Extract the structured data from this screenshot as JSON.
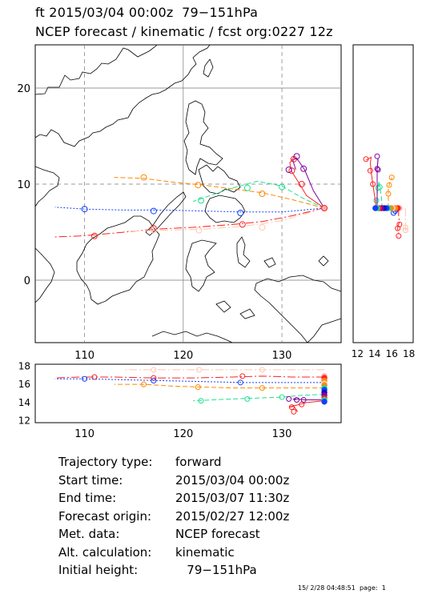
{
  "header": {
    "line1": "ft 2015/03/04 00:00z  79−151hPa",
    "line2": "NCEP forecast / kinematic / fcst org:0227 12z"
  },
  "colors": {
    "red": "#ff2020",
    "orange": "#ff8800",
    "blue": "#1040ff",
    "green": "#20e090",
    "purple": "#8000a0",
    "navy": "#1010c0",
    "pink": "#ffb0b0",
    "peach": "#ffc8b0",
    "coast": "#000000"
  },
  "map": {
    "lon_ticks": [
      "110",
      "120",
      "130"
    ],
    "lat_ticks": [
      "20",
      "10",
      "0"
    ]
  },
  "side_panel": {
    "x_ticks": [
      "12",
      "14",
      "16",
      "18"
    ]
  },
  "bottom_panel": {
    "y_ticks": [
      "18",
      "16",
      "14",
      "12"
    ],
    "x_ticks": [
      "110",
      "120",
      "130"
    ]
  },
  "chart_data": {
    "type": "line",
    "title": "ft 2015/03/04 00:00z  79−151hPa",
    "subtitle": "NCEP forecast / kinematic / fcst org:0227 12z",
    "map_xlim": [
      105,
      136
    ],
    "map_ylim": [
      -6.5,
      24.5
    ],
    "side_xlim": [
      11.5,
      18.5
    ],
    "bottom_ylim": [
      11.8,
      18.2
    ],
    "series": [
      {
        "color": "red",
        "dash": "10,3,2,3",
        "lon": [
          134.3,
          131,
          128,
          125,
          121,
          117,
          113,
          109.5,
          107
        ],
        "lat": [
          7.5,
          6.7,
          6.1,
          5.8,
          5.5,
          5.3,
          4.9,
          4.6,
          4.5
        ],
        "hpa": [
          16.8,
          16.8,
          16.9,
          16.8,
          16.7,
          16.7,
          16.8,
          16.8,
          16.7
        ],
        "markers": [
          [
            126,
            5.8
          ],
          [
            117,
            5.4
          ],
          [
            111,
            4.6
          ]
        ]
      },
      {
        "color": "blue",
        "dash": "2,2",
        "lon": [
          134.3,
          130,
          126,
          122,
          118,
          114,
          110,
          107
        ],
        "lat": [
          7.5,
          7.1,
          7.1,
          7.2,
          7.3,
          7.3,
          7.4,
          7.6
        ],
        "hpa": [
          16.2,
          16.2,
          16.2,
          16.3,
          16.4,
          16.5,
          16.6,
          16.6
        ],
        "markers": [
          [
            125.8,
            7.0
          ],
          [
            117,
            7.2
          ],
          [
            110,
            7.4
          ]
        ]
      },
      {
        "color": "orange",
        "dash": "6,3",
        "lon": [
          134.3,
          131,
          128,
          125,
          122,
          119,
          116,
          113
        ],
        "lat": [
          7.5,
          8.4,
          9.1,
          9.5,
          9.9,
          10.2,
          10.6,
          10.7
        ],
        "hpa": [
          15.6,
          15.6,
          15.6,
          15.6,
          15.7,
          15.8,
          16.0,
          16.0
        ],
        "markers": [
          [
            128,
            9.0
          ],
          [
            121.5,
            9.9
          ],
          [
            116,
            10.7
          ]
        ]
      },
      {
        "color": "green",
        "dash": "6,3",
        "lon": [
          134.3,
          132,
          130,
          127.5,
          125,
          123,
          121
        ],
        "lat": [
          7.5,
          8.6,
          9.8,
          10.3,
          9.6,
          8.9,
          8.2
        ],
        "hpa": [
          14.9,
          14.8,
          14.6,
          14.5,
          14.4,
          14.3,
          14.2
        ],
        "markers": [
          [
            130,
            9.7
          ],
          [
            126.5,
            9.6
          ],
          [
            121.8,
            8.3
          ]
        ]
      },
      {
        "color": "red",
        "dash": "",
        "lon": [
          134.3,
          132.5,
          131.8,
          131.0,
          130.8,
          131.2,
          131.6
        ],
        "lat": [
          7.5,
          8.8,
          10.0,
          11.3,
          12.2,
          12.8,
          12.5
        ],
        "hpa": [
          14.2,
          14.0,
          13.8,
          13.6,
          13.5,
          13.6,
          13.0
        ],
        "markers": [
          [
            132,
            10.0
          ],
          [
            131,
            11.4
          ],
          [
            131.2,
            12.6
          ]
        ]
      },
      {
        "color": "purple",
        "dash": "",
        "lon": [
          134.3,
          133.2,
          132.3,
          131.5,
          131.1,
          131.4
        ],
        "lat": [
          7.5,
          9.3,
          11.5,
          12.7,
          12.5,
          11.5
        ],
        "hpa": [
          14.3,
          14.3,
          14.3,
          14.4,
          14.4,
          14.3
        ],
        "markers": [
          [
            132.2,
            11.6
          ],
          [
            130.7,
            11.5
          ],
          [
            131.5,
            12.9
          ]
        ]
      },
      {
        "color": "peach",
        "dash": "10,3,2,3",
        "lon": [
          134.3,
          130,
          126,
          122,
          118,
          114
        ],
        "lat": [
          7.5,
          6.2,
          5.6,
          5.3,
          5.2,
          5.1
        ],
        "hpa": [
          17.6,
          17.6,
          17.6,
          17.6,
          17.6,
          17.6
        ],
        "markers": [
          [
            128,
            5.5
          ],
          [
            121.6,
            5.2
          ],
          [
            117,
            5.2
          ]
        ]
      }
    ],
    "start_stack_hpa": [
      16.9,
      16.7,
      16.4,
      16.1,
      15.9,
      15.6,
      15.4,
      15.1,
      14.8,
      14.5,
      14.3,
      14.1
    ]
  },
  "info": {
    "rows": [
      {
        "label": "Trajectory type:",
        "value": "forward"
      },
      {
        "label": "Start time:",
        "value": "2015/03/04 00:00z"
      },
      {
        "label": "End time:",
        "value": "2015/03/07 11:30z"
      },
      {
        "label": "Forecast origin:",
        "value": "2015/02/27 12:00z"
      },
      {
        "label": "Met. data:",
        "value": "NCEP forecast"
      },
      {
        "label": "Alt. calculation:",
        "value": "kinematic"
      },
      {
        "label": "Initial height:",
        "value": "   79−151hPa"
      }
    ]
  },
  "footer": {
    "text": "15/ 2/28 04:48:51  page:  1"
  }
}
